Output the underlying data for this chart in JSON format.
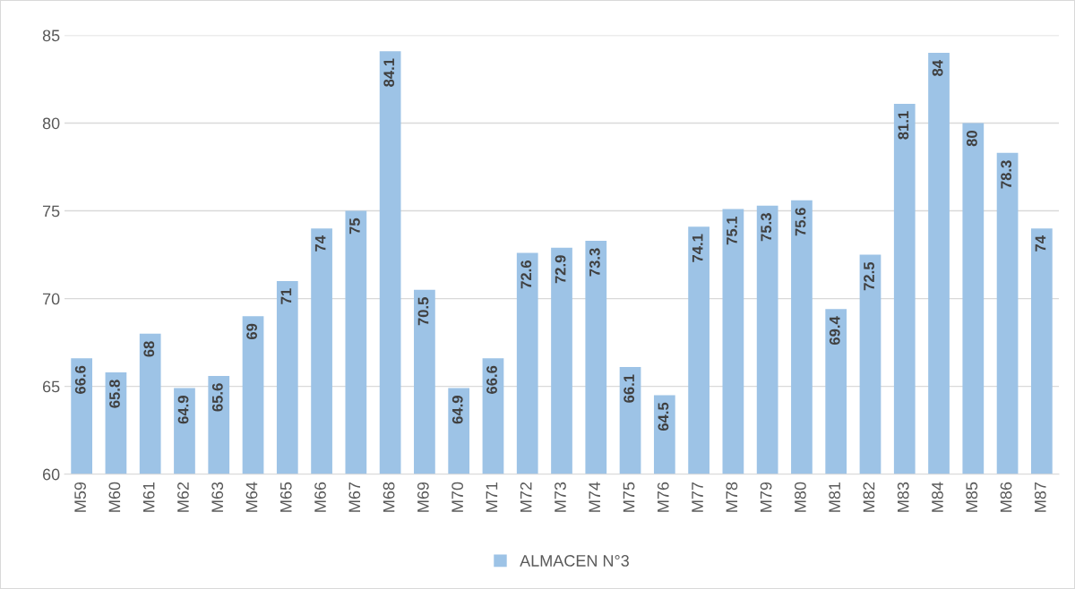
{
  "chart_data": {
    "type": "bar",
    "categories": [
      "M59",
      "M60",
      "M61",
      "M62",
      "M63",
      "M64",
      "M65",
      "M66",
      "M67",
      "M68",
      "M69",
      "M70",
      "M71",
      "M72",
      "M73",
      "M74",
      "M75",
      "M76",
      "M77",
      "M78",
      "M79",
      "M80",
      "M81",
      "M82",
      "M83",
      "M84",
      "M85",
      "M86",
      "M87"
    ],
    "series": [
      {
        "name": "ALMACEN N°3",
        "color": "#9dc3e6",
        "values": [
          66.6,
          65.8,
          68,
          64.9,
          65.6,
          69,
          71,
          74,
          75,
          84.1,
          70.5,
          64.9,
          66.6,
          72.6,
          72.9,
          73.3,
          66.1,
          64.5,
          74.1,
          75.1,
          75.3,
          75.6,
          69.4,
          72.5,
          81.1,
          84,
          80,
          78.3,
          74
        ]
      }
    ],
    "ylim": [
      60,
      85
    ],
    "yticks": [
      60,
      65,
      70,
      75,
      80,
      85
    ],
    "grid": "y",
    "legend": "bottom",
    "data_labels": true
  }
}
